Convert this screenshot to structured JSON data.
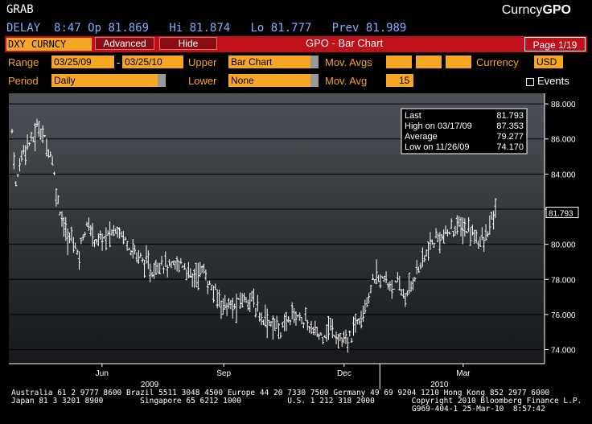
{
  "header": {
    "screen": "GRAB",
    "brand_prefix": "Curncy",
    "brand_suffix": "GPO",
    "quote": {
      "delay": "DELAY",
      "time": "8:47",
      "open": "Op 81.869",
      "high": "Hi 81.874",
      "low": "Lo 81.777",
      "prev": "Prev 81.989"
    }
  },
  "toolbar": {
    "ticker": "DXY CURNCY",
    "advanced_label": "Advanced",
    "hide_label": "Hide",
    "title": "GPO - Bar Chart",
    "page": "Page 1/19"
  },
  "controls": {
    "range_label": "Range",
    "range_start": "03/25/09",
    "range_sep": "-",
    "range_end": "03/25/10",
    "upper_label": "Upper",
    "upper_value": "Bar Chart",
    "mov_avgs_label": "Mov. Avgs",
    "currency_label": "Currency",
    "currency_value": "USD",
    "period_label": "Period",
    "period_value": "Daily",
    "lower_label": "Lower",
    "lower_value": "None",
    "mov_avg_label": "Mov. Avg",
    "mov_avg_value": "15",
    "events_label": "Events"
  },
  "stats": {
    "last_label": "Last",
    "last_value": "81.793",
    "high_label": "High on 03/17/09",
    "high_value": "87.353",
    "avg_label": "Average",
    "avg_value": "79.277",
    "low_label": "Low on 11/26/09",
    "low_value": "74.170"
  },
  "chart_data": {
    "type": "bar",
    "title": "",
    "xlabel": "",
    "ylabel": "",
    "ylim": [
      73.2,
      88.6
    ],
    "yticks": [
      74,
      76,
      78,
      80,
      82,
      84,
      86,
      88
    ],
    "ytick_labels": [
      "74.000",
      "76.000",
      "78.000",
      "80.000",
      "82.000",
      "84.000",
      "86.000",
      "88.000"
    ],
    "xticks": [
      {
        "day": 68,
        "label": "Jun"
      },
      {
        "day": 160,
        "label": "Sep"
      },
      {
        "day": 251,
        "label": "Dec"
      },
      {
        "day": 341,
        "label": "Mar"
      }
    ],
    "year_labels": [
      {
        "day": 104,
        "label": "2009"
      },
      {
        "day": 323,
        "label": "2010"
      }
    ],
    "last_value_label": "81.793",
    "grid": true,
    "x_range": [
      0,
      366
    ],
    "anchors": [
      [
        0,
        86.5
      ],
      [
        3,
        83.2
      ],
      [
        8,
        85.5
      ],
      [
        16,
        86.0
      ],
      [
        20,
        86.8
      ],
      [
        24,
        86.1
      ],
      [
        30,
        85.0
      ],
      [
        34,
        82.7
      ],
      [
        38,
        81.5
      ],
      [
        42,
        80.2
      ],
      [
        46,
        80.5
      ],
      [
        50,
        79.2
      ],
      [
        54,
        80.7
      ],
      [
        58,
        81.0
      ],
      [
        64,
        80.2
      ],
      [
        72,
        80.4
      ],
      [
        80,
        81.0
      ],
      [
        90,
        79.8
      ],
      [
        100,
        79.0
      ],
      [
        106,
        78.4
      ],
      [
        112,
        79.1
      ],
      [
        120,
        78.6
      ],
      [
        128,
        79.0
      ],
      [
        136,
        78.1
      ],
      [
        144,
        78.6
      ],
      [
        150,
        77.5
      ],
      [
        160,
        76.6
      ],
      [
        168,
        76.3
      ],
      [
        174,
        76.9
      ],
      [
        180,
        77.0
      ],
      [
        186,
        76.1
      ],
      [
        196,
        75.5
      ],
      [
        204,
        75.1
      ],
      [
        212,
        76.1
      ],
      [
        220,
        75.7
      ],
      [
        228,
        75.0
      ],
      [
        234,
        74.8
      ],
      [
        240,
        75.3
      ],
      [
        248,
        74.6
      ],
      [
        252,
        74.3
      ],
      [
        256,
        74.7
      ],
      [
        262,
        75.9
      ],
      [
        268,
        76.8
      ],
      [
        274,
        78.1
      ],
      [
        280,
        78.0
      ],
      [
        286,
        77.7
      ],
      [
        292,
        77.6
      ],
      [
        298,
        76.9
      ],
      [
        304,
        78.2
      ],
      [
        310,
        79.0
      ],
      [
        316,
        79.8
      ],
      [
        322,
        80.4
      ],
      [
        328,
        80.5
      ],
      [
        334,
        80.9
      ],
      [
        340,
        81.0
      ],
      [
        346,
        80.7
      ],
      [
        352,
        80.4
      ],
      [
        356,
        80.0
      ],
      [
        360,
        80.7
      ],
      [
        363,
        81.5
      ],
      [
        366,
        81.79
      ]
    ]
  },
  "footer": {
    "line1": "Australia 61 2 9777 8600 Brazil 5511 3048 4500 Europe 44 20 7330 7500 Germany 49 69 9204 1210 Hong Kong 852 2977 6000",
    "line2_left": "Japan 81 3 3201 8900",
    "line2_mid": "Singapore 65 6212 1000",
    "line2_mid2": "U.S. 1 212 318 2000",
    "line2_right": "Copyright 2010 Bloomberg Finance L.P.",
    "line3": "G969-404-1 25-Mar-10  8:57:42"
  },
  "colors": {
    "accent": "#f5a623",
    "bar": "#c0101a",
    "quote": "#7fb0ff"
  }
}
